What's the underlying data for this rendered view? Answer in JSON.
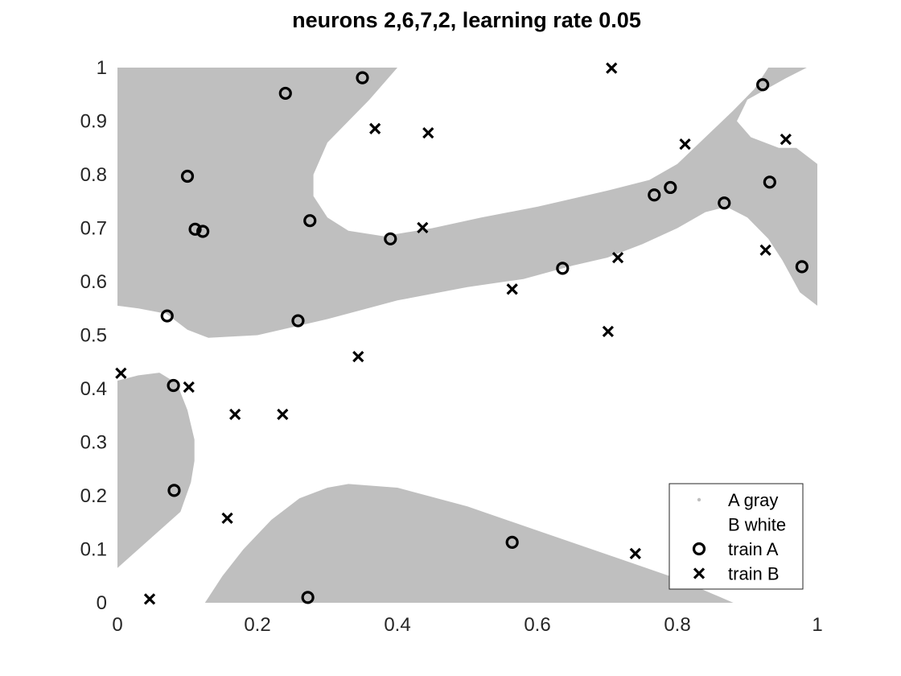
{
  "chart_data": {
    "type": "scatter",
    "title": "neurons 2,6,7,2, learning rate 0.05",
    "xlabel": "",
    "ylabel": "",
    "xlim": [
      0,
      1
    ],
    "ylim": [
      0,
      1
    ],
    "x_ticks": [
      "0",
      "0.2",
      "0.4",
      "0.6",
      "0.8",
      "1"
    ],
    "y_ticks": [
      "0",
      "0.1",
      "0.2",
      "0.3",
      "0.4",
      "0.5",
      "0.6",
      "0.7",
      "0.8",
      "0.9",
      "1"
    ],
    "grid": false,
    "legend_position": "bottom-right",
    "legend": [
      {
        "label": "A gray",
        "marker": "dot"
      },
      {
        "label": "B white",
        "marker": "none"
      },
      {
        "label": "train A",
        "marker": "circle"
      },
      {
        "label": "train B",
        "marker": "x"
      }
    ],
    "colors": {
      "region_A": "#bfbfbf",
      "region_B": "#ffffff",
      "markers": "#000000"
    },
    "regions": [
      {
        "name": "region-A-top-left",
        "points": [
          [
            0,
            1
          ],
          [
            0.4,
            1
          ],
          [
            0.36,
            0.94
          ],
          [
            0.33,
            0.9
          ],
          [
            0.3,
            0.86
          ],
          [
            0.28,
            0.8
          ],
          [
            0.28,
            0.76
          ],
          [
            0.3,
            0.72
          ],
          [
            0.33,
            0.695
          ],
          [
            0.38,
            0.685
          ],
          [
            0.45,
            0.7
          ],
          [
            0.52,
            0.72
          ],
          [
            0.6,
            0.74
          ],
          [
            0.7,
            0.77
          ],
          [
            0.76,
            0.79
          ],
          [
            0.8,
            0.82
          ],
          [
            0.84,
            0.87
          ],
          [
            0.88,
            0.92
          ],
          [
            0.91,
            0.96
          ],
          [
            0.93,
            1
          ],
          [
            0.985,
            1
          ],
          [
            0.955,
            0.98
          ],
          [
            0.9,
            0.94
          ],
          [
            0.885,
            0.9
          ],
          [
            0.905,
            0.87
          ],
          [
            0.945,
            0.85
          ],
          [
            0.97,
            0.85
          ],
          [
            1,
            0.82
          ],
          [
            1,
            0.555
          ],
          [
            0.975,
            0.58
          ],
          [
            0.95,
            0.64
          ],
          [
            0.93,
            0.68
          ],
          [
            0.9,
            0.72
          ],
          [
            0.87,
            0.74
          ],
          [
            0.84,
            0.73
          ],
          [
            0.8,
            0.7
          ],
          [
            0.75,
            0.67
          ],
          [
            0.7,
            0.645
          ],
          [
            0.65,
            0.63
          ],
          [
            0.58,
            0.605
          ],
          [
            0.5,
            0.59
          ],
          [
            0.4,
            0.565
          ],
          [
            0.3,
            0.53
          ],
          [
            0.2,
            0.5
          ],
          [
            0.13,
            0.495
          ],
          [
            0.1,
            0.51
          ],
          [
            0.07,
            0.54
          ],
          [
            0.03,
            0.55
          ],
          [
            0,
            0.555
          ]
        ]
      },
      {
        "name": "region-A-left",
        "points": [
          [
            0,
            0.065
          ],
          [
            0.03,
            0.1
          ],
          [
            0.06,
            0.135
          ],
          [
            0.09,
            0.17
          ],
          [
            0.105,
            0.225
          ],
          [
            0.11,
            0.265
          ],
          [
            0.11,
            0.305
          ],
          [
            0.1,
            0.36
          ],
          [
            0.085,
            0.41
          ],
          [
            0.06,
            0.43
          ],
          [
            0.03,
            0.425
          ],
          [
            0,
            0.415
          ]
        ]
      },
      {
        "name": "region-A-bottom",
        "points": [
          [
            0.125,
            0
          ],
          [
            0.88,
            0
          ],
          [
            0.8,
            0.045
          ],
          [
            0.7,
            0.09
          ],
          [
            0.6,
            0.135
          ],
          [
            0.5,
            0.18
          ],
          [
            0.4,
            0.215
          ],
          [
            0.33,
            0.222
          ],
          [
            0.3,
            0.215
          ],
          [
            0.26,
            0.195
          ],
          [
            0.22,
            0.155
          ],
          [
            0.18,
            0.1
          ],
          [
            0.15,
            0.05
          ]
        ]
      }
    ],
    "series": [
      {
        "name": "train A",
        "marker": "circle",
        "points": [
          [
            0.35,
            0.981
          ],
          [
            0.24,
            0.952
          ],
          [
            0.922,
            0.968
          ],
          [
            0.1,
            0.797
          ],
          [
            0.932,
            0.786
          ],
          [
            0.79,
            0.776
          ],
          [
            0.767,
            0.762
          ],
          [
            0.275,
            0.714
          ],
          [
            0.867,
            0.747
          ],
          [
            0.111,
            0.698
          ],
          [
            0.122,
            0.694
          ],
          [
            0.39,
            0.68
          ],
          [
            0.636,
            0.625
          ],
          [
            0.978,
            0.628
          ],
          [
            0.071,
            0.536
          ],
          [
            0.258,
            0.527
          ],
          [
            0.08,
            0.406
          ],
          [
            0.081,
            0.21
          ],
          [
            0.564,
            0.113
          ],
          [
            0.272,
            0.01
          ]
        ]
      },
      {
        "name": "train B",
        "marker": "x",
        "points": [
          [
            0.706,
            0.999
          ],
          [
            0.368,
            0.886
          ],
          [
            0.444,
            0.878
          ],
          [
            0.811,
            0.857
          ],
          [
            0.955,
            0.866
          ],
          [
            0.436,
            0.701
          ],
          [
            0.926,
            0.659
          ],
          [
            0.715,
            0.645
          ],
          [
            0.564,
            0.586
          ],
          [
            0.701,
            0.507
          ],
          [
            0.344,
            0.46
          ],
          [
            0.005,
            0.429
          ],
          [
            0.102,
            0.403
          ],
          [
            0.168,
            0.352
          ],
          [
            0.236,
            0.352
          ],
          [
            0.157,
            0.158
          ],
          [
            0.74,
            0.092
          ],
          [
            0.046,
            0.007
          ]
        ]
      }
    ]
  }
}
